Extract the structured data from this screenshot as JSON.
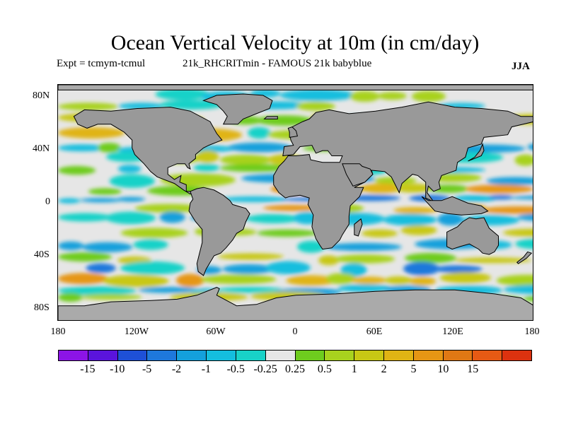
{
  "title": "Ocean Vertical Velocity at 10m (in cm/day)",
  "subtitle_left": "Expt = tcmym-tcmul",
  "subtitle_right": "21k_RHCRITmin - FAMOUS 21k babyblue",
  "season": "JJA",
  "lat_labels": [
    "80N",
    "40N",
    "0",
    "40S",
    "80S"
  ],
  "lon_labels": [
    "180",
    "120W",
    "60W",
    "0",
    "60E",
    "120E",
    "180"
  ],
  "colorbar": {
    "colors": [
      "#8c14e6",
      "#5a14dc",
      "#1e50d7",
      "#1e78dc",
      "#14a0dc",
      "#14bede",
      "#18d2c8",
      "#e6e6e6",
      "#6ecc1e",
      "#a8d21e",
      "#c8c814",
      "#e0b414",
      "#e69614",
      "#e07814",
      "#e65a14",
      "#dc320f"
    ],
    "labels": [
      "-15",
      "-10",
      "-5",
      "-2",
      "-1",
      "-0.5",
      "-0.25",
      "0.25",
      "0.5",
      "1",
      "2",
      "5",
      "10",
      "15"
    ]
  },
  "map": {
    "land_color": "#999999",
    "ice_color": "#aaaaaa"
  }
}
